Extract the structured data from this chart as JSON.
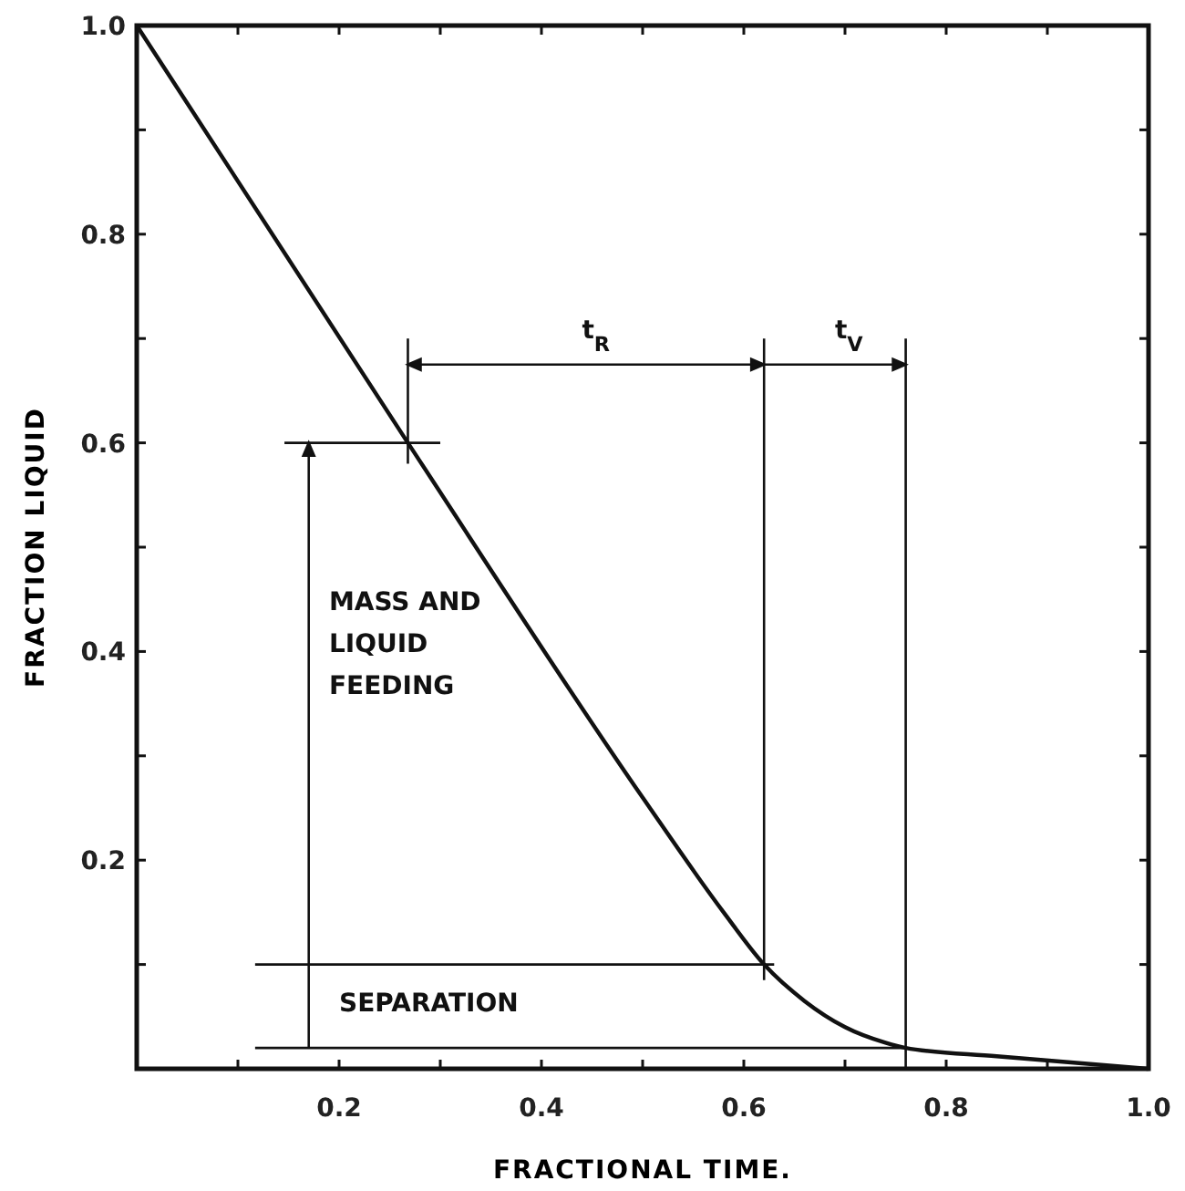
{
  "chart_data": {
    "type": "line",
    "xlabel": "FRACTIONAL TIME.",
    "ylabel": "FRACTION LIQUID",
    "x": [
      0,
      0.268,
      0.5,
      0.58,
      0.62,
      0.66,
      0.7,
      0.74,
      0.76,
      0.85,
      1.0
    ],
    "series": [
      {
        "color": "#111111",
        "values": [
          1.0,
          0.6,
          0.26,
          0.15,
          0.1,
          0.065,
          0.04,
          0.025,
          0.02,
          0.012,
          0.0
        ]
      }
    ],
    "xlim": [
      0,
      1
    ],
    "ylim": [
      0,
      1
    ],
    "xticks": [
      {
        "value": 0.1,
        "label": null
      },
      {
        "value": 0.2,
        "label": "0.2"
      },
      {
        "value": 0.3,
        "label": null
      },
      {
        "value": 0.4,
        "label": "0.4"
      },
      {
        "value": 0.5,
        "label": null
      },
      {
        "value": 0.6,
        "label": "0.6"
      },
      {
        "value": 0.7,
        "label": null
      },
      {
        "value": 0.8,
        "label": "0.8"
      },
      {
        "value": 0.9,
        "label": null
      },
      {
        "value": 1.0,
        "label": "1.0"
      }
    ],
    "yticks": [
      {
        "value": 0.1,
        "label": null
      },
      {
        "value": 0.2,
        "label": "0.2"
      },
      {
        "value": 0.3,
        "label": null
      },
      {
        "value": 0.4,
        "label": "0.4"
      },
      {
        "value": 0.5,
        "label": null
      },
      {
        "value": 0.6,
        "label": "0.6"
      },
      {
        "value": 0.7,
        "label": null
      },
      {
        "value": 0.8,
        "label": "0.8"
      },
      {
        "value": 0.9,
        "label": null
      },
      {
        "value": 1.0,
        "label": "1.0"
      }
    ],
    "grid": false,
    "marker": "none",
    "line_style": "solid",
    "ref_lines": [
      {
        "axis": "x",
        "value": 0.268
      },
      {
        "axis": "x",
        "value": 0.62
      },
      {
        "axis": "x",
        "value": 0.76
      },
      {
        "axis": "y",
        "value": 0.6
      },
      {
        "axis": "y",
        "value": 0.1
      },
      {
        "axis": "y",
        "value": 0.02
      }
    ],
    "annotations": [
      "t$_{R}$",
      "t$_{V}$",
      "MASS AND LIQUID FEEDING",
      "SEPARATION"
    ]
  }
}
